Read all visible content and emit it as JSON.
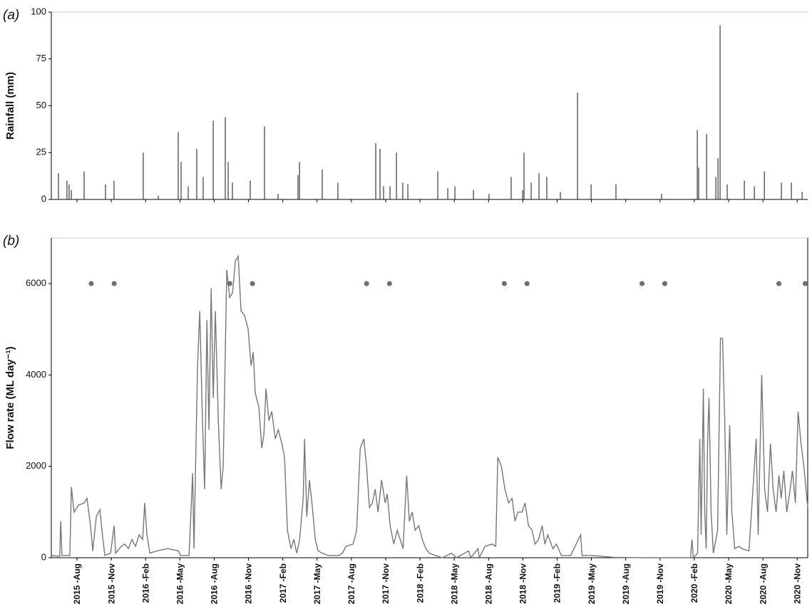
{
  "chart_data": [
    {
      "type": "bar",
      "panel_label": "(a)",
      "y_label": "Rainfall (mm)",
      "color": "#3a3a3a",
      "xlim": [
        2015.396,
        2020.91
      ],
      "ylim": [
        0,
        100
      ],
      "yticks": [
        0,
        25,
        50,
        75,
        100
      ],
      "x": [
        2015.448,
        2015.51,
        2015.526,
        2015.542,
        2015.635,
        2015.791,
        2015.853,
        2016.066,
        2016.176,
        2016.321,
        2016.342,
        2016.394,
        2016.456,
        2016.503,
        2016.576,
        2016.664,
        2016.685,
        2016.716,
        2016.846,
        2016.95,
        2017.049,
        2017.194,
        2017.205,
        2017.371,
        2017.485,
        2017.761,
        2017.792,
        2017.818,
        2017.865,
        2017.912,
        2017.958,
        2017.995,
        2018.213,
        2018.286,
        2018.338,
        2018.473,
        2018.587,
        2018.748,
        2018.832,
        2018.842,
        2018.894,
        2018.951,
        2019.008,
        2019.107,
        2019.232,
        2019.331,
        2019.512,
        2019.845,
        2020.105,
        2020.115,
        2020.173,
        2020.24,
        2020.256,
        2020.271,
        2020.323,
        2020.448,
        2020.521,
        2020.594,
        2020.718,
        2020.791,
        2020.869
      ],
      "values": [
        14,
        10,
        8,
        5,
        15,
        8,
        10,
        25,
        2,
        36,
        20,
        7,
        27,
        12,
        42,
        44,
        20,
        9,
        10,
        39,
        3,
        13,
        20,
        16,
        9,
        30,
        27,
        7,
        7,
        25,
        9,
        8,
        15,
        6,
        7,
        5,
        3,
        12,
        5,
        25,
        9,
        14,
        12,
        4,
        57,
        8,
        8,
        3,
        37,
        17,
        35,
        12,
        22,
        93,
        8,
        10,
        7,
        15,
        9,
        9,
        4
      ]
    },
    {
      "type": "line",
      "panel_label": "(b)",
      "y_label": "Flow rate (ML day⁻¹)",
      "xlim": [
        2015.396,
        2020.91
      ],
      "ylim": [
        0,
        7000
      ],
      "yticks": [
        0,
        2000,
        4000,
        6000
      ],
      "xticks": [
        {
          "value": 2015.5833,
          "label": "2015 -Aug"
        },
        {
          "value": 2015.8333,
          "label": "2015 -Nov"
        },
        {
          "value": 2016.0833,
          "label": "2016 -Feb"
        },
        {
          "value": 2016.3333,
          "label": "2016 -May"
        },
        {
          "value": 2016.5833,
          "label": "2016 -Aug"
        },
        {
          "value": 2016.8333,
          "label": "2016 -Nov"
        },
        {
          "value": 2017.0833,
          "label": "2017 -Feb"
        },
        {
          "value": 2017.3333,
          "label": "2017 -May"
        },
        {
          "value": 2017.5833,
          "label": "2017 -Aug"
        },
        {
          "value": 2017.8333,
          "label": "2017 -Nov"
        },
        {
          "value": 2018.0833,
          "label": "2018 -Feb"
        },
        {
          "value": 2018.3333,
          "label": "2018 -May"
        },
        {
          "value": 2018.5833,
          "label": "2018 -Aug"
        },
        {
          "value": 2018.8333,
          "label": "2018 -Nov"
        },
        {
          "value": 2019.0833,
          "label": "2019 -Feb"
        },
        {
          "value": 2019.3333,
          "label": "2019 -May"
        },
        {
          "value": 2019.5833,
          "label": "2019 -Aug"
        },
        {
          "value": 2019.8333,
          "label": "2019 -Nov"
        },
        {
          "value": 2020.0833,
          "label": "2020 -Feb"
        },
        {
          "value": 2020.3333,
          "label": "2020 -May"
        },
        {
          "value": 2020.5833,
          "label": "2020 -Aug"
        },
        {
          "value": 2020.8333,
          "label": "2020 -Nov"
        }
      ],
      "series": [
        {
          "type": "line",
          "color": "#777777",
          "x": [
            2015.396,
            2015.458,
            2015.464,
            2015.474,
            2015.531,
            2015.542,
            2015.562,
            2015.594,
            2015.635,
            2015.656,
            2015.682,
            2015.698,
            2015.724,
            2015.75,
            2015.765,
            2015.786,
            2015.828,
            2015.854,
            2015.864,
            2015.906,
            2015.932,
            2015.958,
            2015.984,
            2016.01,
            2016.036,
            2016.062,
            2016.077,
            2016.093,
            2016.114,
            2016.166,
            2016.244,
            2016.322,
            2016.337,
            2016.4,
            2016.426,
            2016.436,
            2016.462,
            2016.478,
            2016.498,
            2016.514,
            2016.53,
            2016.545,
            2016.561,
            2016.576,
            2016.592,
            2016.613,
            2016.634,
            2016.649,
            2016.675,
            2016.696,
            2016.717,
            2016.738,
            2016.758,
            2016.779,
            2016.805,
            2016.831,
            2016.852,
            2016.868,
            2016.883,
            2016.909,
            2016.93,
            2016.946,
            2016.961,
            2016.982,
            2017.003,
            2017.029,
            2017.05,
            2017.076,
            2017.096,
            2017.117,
            2017.143,
            2017.164,
            2017.185,
            2017.206,
            2017.232,
            2017.242,
            2017.258,
            2017.278,
            2017.299,
            2017.32,
            2017.341,
            2017.372,
            2017.414,
            2017.492,
            2017.518,
            2017.544,
            2017.596,
            2017.622,
            2017.648,
            2017.674,
            2017.694,
            2017.715,
            2017.736,
            2017.757,
            2017.778,
            2017.804,
            2017.83,
            2017.845,
            2017.866,
            2017.892,
            2017.918,
            2017.939,
            2017.96,
            2017.986,
            2018.006,
            2018.027,
            2018.048,
            2018.074,
            2018.1,
            2018.126,
            2018.152,
            2018.194,
            2018.246,
            2018.313,
            2018.35,
            2018.438,
            2018.454,
            2018.506,
            2018.516,
            2018.558,
            2018.61,
            2018.636,
            2018.651,
            2018.677,
            2018.703,
            2018.729,
            2018.755,
            2018.776,
            2018.797,
            2018.828,
            2018.849,
            2018.875,
            2018.901,
            2018.922,
            2018.948,
            2018.974,
            2018.994,
            2019.015,
            2019.052,
            2019.078,
            2019.114,
            2019.182,
            2019.254,
            2019.265,
            2019.338,
            2019.494,
            2019.702,
            2020.055,
            2020.066,
            2020.076,
            2020.107,
            2020.123,
            2020.133,
            2020.149,
            2020.159,
            2020.17,
            2020.18,
            2020.19,
            2020.206,
            2020.222,
            2020.253,
            2020.274,
            2020.289,
            2020.305,
            2020.32,
            2020.341,
            2020.357,
            2020.378,
            2020.409,
            2020.43,
            2020.482,
            2020.534,
            2020.549,
            2020.575,
            2020.596,
            2020.617,
            2020.638,
            2020.658,
            2020.679,
            2020.7,
            2020.716,
            2020.736,
            2020.757,
            2020.778,
            2020.799,
            2020.82,
            2020.84,
            2020.861,
            2020.882,
            2020.91
          ],
          "values": [
            50,
            30,
            800,
            50,
            50,
            1550,
            1000,
            1150,
            1200,
            1300,
            700,
            150,
            900,
            1050,
            600,
            50,
            100,
            700,
            100,
            250,
            300,
            200,
            400,
            250,
            500,
            400,
            1200,
            500,
            100,
            150,
            200,
            150,
            50,
            50,
            1850,
            200,
            4200,
            5400,
            3000,
            1500,
            5200,
            2800,
            5900,
            3500,
            5400,
            3000,
            1500,
            2000,
            6300,
            5700,
            5800,
            6500,
            6600,
            5400,
            5300,
            5000,
            4200,
            4500,
            3600,
            3300,
            2400,
            2700,
            3700,
            3000,
            3200,
            2600,
            2800,
            2500,
            2200,
            600,
            200,
            400,
            100,
            400,
            1300,
            2600,
            900,
            1700,
            1100,
            400,
            150,
            100,
            50,
            50,
            100,
            250,
            300,
            600,
            2400,
            2600,
            2000,
            1100,
            1200,
            1500,
            1000,
            1700,
            1200,
            1400,
            700,
            300,
            600,
            400,
            200,
            1800,
            800,
            1000,
            600,
            700,
            400,
            200,
            100,
            50,
            0,
            100,
            0,
            150,
            0,
            200,
            0,
            250,
            300,
            250,
            2200,
            2000,
            1500,
            1200,
            1300,
            800,
            1000,
            1000,
            1200,
            700,
            600,
            300,
            400,
            700,
            300,
            500,
            200,
            300,
            50,
            50,
            500,
            50,
            50,
            10,
            0,
            0,
            400,
            0,
            100,
            2600,
            500,
            3700,
            1000,
            200,
            2500,
            3500,
            1000,
            100,
            600,
            4800,
            4800,
            3000,
            500,
            2900,
            1000,
            200,
            250,
            200,
            150,
            2600,
            500,
            4000,
            1500,
            1000,
            2500,
            1500,
            1000,
            1800,
            1300,
            1900,
            1000,
            1400,
            1900,
            1200,
            3200,
            2500,
            2000,
            1100
          ]
        },
        {
          "type": "scatter",
          "color": "#6e6e6e",
          "x": [
            2015.687,
            2015.854,
            2016.696,
            2016.862,
            2017.694,
            2017.861,
            2018.698,
            2018.864,
            2019.702,
            2019.868,
            2020.7,
            2020.892
          ],
          "values": [
            6000,
            6000,
            6000,
            6000,
            6000,
            6000,
            6000,
            6000,
            6000,
            6000,
            6000,
            6000
          ]
        }
      ]
    }
  ]
}
